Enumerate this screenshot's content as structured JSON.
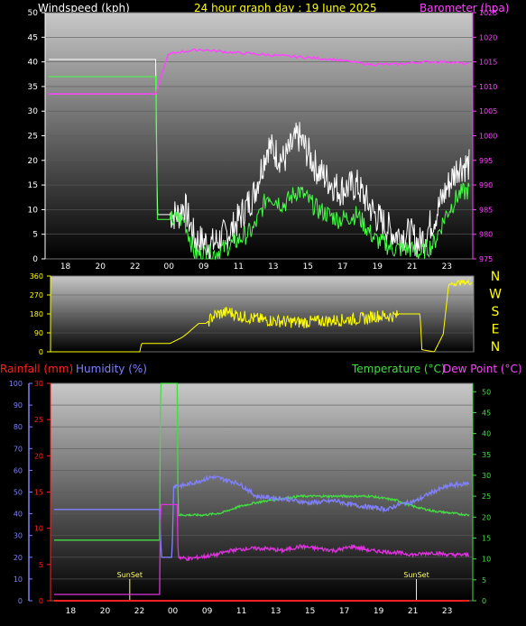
{
  "header": {
    "left_title": "Windspeed (kph)",
    "center_title": "24 hour graph day : 19 June 2025",
    "right_title": "Barometer (hpa)"
  },
  "bottom_header": {
    "rain_label": "Rainfall (mm)",
    "humidity_label": "Humidity (%)",
    "temp_label": "Temperature (°C)",
    "dew_label": "Dew Point (°C)"
  },
  "compass": [
    "N",
    "W",
    "S",
    "E",
    "N"
  ],
  "sunset_label": "SunSet",
  "colors": {
    "windspeed": "#ffffff",
    "gust": "#ffffff",
    "avg_wind": "#44ff44",
    "barometer": "#ff44ff",
    "direction": "#ffff00",
    "rain": "#ff2020",
    "humidity": "#8080ff",
    "temperature": "#44dd44",
    "dewpoint": "#dd33dd",
    "sunset": "#ffff66"
  },
  "chart_data": [
    {
      "type": "line",
      "name": "wind",
      "x_ticks": [
        "18",
        "20",
        "22",
        "00",
        "09",
        "11",
        "13",
        "15",
        "17",
        "19",
        "21",
        "23"
      ],
      "ylim": [
        0,
        50
      ],
      "y_ticks": [
        0,
        5,
        10,
        15,
        20,
        25,
        30,
        35,
        40,
        45,
        50
      ],
      "y2lim": [
        975,
        1025
      ],
      "y2_ticks": [
        975,
        980,
        985,
        990,
        995,
        1000,
        1005,
        1010,
        1015,
        1020,
        1025
      ],
      "series": [
        {
          "key": "gust",
          "x": [
            0,
            6.0,
            6.1,
            6.6,
            7.3,
            7.6,
            8.2,
            9.2,
            10.3,
            11.5,
            12.3,
            13.2,
            14.0,
            15.1,
            16.3,
            17.3,
            18.3,
            19.4,
            20.3,
            20.8,
            21.6,
            22.3,
            23.0,
            23.6
          ],
          "values": [
            40.5,
            40.5,
            9,
            9,
            9,
            11,
            4,
            3,
            6,
            13,
            23,
            20,
            25,
            18,
            14,
            15,
            9,
            5,
            5,
            3,
            8,
            14,
            19,
            19
          ]
        },
        {
          "key": "avg",
          "x": [
            0,
            6.0,
            6.1,
            6.6,
            7.3,
            7.6,
            8.2,
            9.2,
            10.3,
            11.5,
            12.3,
            13.2,
            14.0,
            15.1,
            16.3,
            17.3,
            18.3,
            19.4,
            20.3,
            20.8,
            21.6,
            22.3,
            23.0,
            23.6
          ],
          "values": [
            37,
            37,
            8,
            8,
            8,
            8,
            1,
            1,
            3,
            6,
            13,
            11,
            14,
            10,
            8,
            9,
            4,
            2,
            2,
            1,
            3,
            9,
            13,
            14
          ]
        },
        {
          "key": "baro",
          "x": [
            0,
            6.0,
            6.3,
            6.7,
            7.3,
            8.5,
            10,
            12,
            14,
            16,
            18,
            19.5,
            21,
            22.5,
            23.6
          ],
          "values": [
            1008.5,
            1008.5,
            1012,
            1016.5,
            1017,
            1017.5,
            1017,
            1016.5,
            1016,
            1015.5,
            1014.5,
            1014.5,
            1015,
            1015,
            1014.5
          ]
        }
      ]
    },
    {
      "type": "line",
      "name": "wind_direction",
      "ylim": [
        0,
        360
      ],
      "y_ticks": [
        0,
        90,
        180,
        270,
        360
      ],
      "series": [
        {
          "key": "dir",
          "x": [
            0,
            5.0,
            5.1,
            6.4,
            6.7,
            7.4,
            7.7,
            8.3,
            8.7,
            9.2,
            10.0,
            10.6,
            12.0,
            14.0,
            16.0,
            17.9,
            18.0,
            19.4,
            19.5,
            20.7,
            20.8,
            21.5,
            22.0,
            22.3,
            22.9,
            23.6
          ],
          "values": [
            0,
            0,
            40,
            40,
            40,
            70,
            90,
            135,
            135,
            175,
            190,
            170,
            150,
            140,
            150,
            160,
            170,
            170,
            180,
            180,
            10,
            0,
            85,
            320,
            330,
            330
          ]
        }
      ]
    },
    {
      "type": "line",
      "name": "rain_humidity_temp",
      "x_ticks": [
        "18",
        "20",
        "22",
        "00",
        "09",
        "11",
        "13",
        "15",
        "17",
        "19",
        "21",
        "23"
      ],
      "rain_ylim": [
        0,
        30
      ],
      "rain_ticks": [
        0,
        5,
        10,
        15,
        20,
        25,
        30
      ],
      "humidity_ylim": [
        0,
        100
      ],
      "humidity_ticks": [
        0,
        10,
        20,
        30,
        40,
        50,
        60,
        70,
        80,
        90,
        100
      ],
      "temp_ylim": [
        0,
        52
      ],
      "temp_ticks": [
        0,
        5,
        10,
        15,
        20,
        25,
        30,
        35,
        40,
        45,
        50
      ],
      "series": [
        {
          "key": "rain",
          "x": [
            0,
            23.6
          ],
          "values": [
            0,
            0
          ]
        },
        {
          "key": "humidity",
          "x": [
            0,
            6.0,
            6.1,
            6.7,
            6.8,
            7.4,
            8.2,
            9.0,
            9.6,
            10.5,
            11.5,
            13,
            14.5,
            16,
            17,
            18,
            19,
            19.5,
            20.6,
            21.5,
            22.5,
            23.6
          ],
          "values": [
            42,
            42,
            20,
            20,
            53,
            53,
            55,
            57,
            56,
            54,
            48,
            47,
            45,
            46,
            44,
            43,
            42,
            44,
            46,
            50,
            53,
            54
          ]
        },
        {
          "key": "temperature",
          "x": [
            0,
            6.0,
            6.05,
            7.0,
            7.05,
            8.5,
            9.5,
            10.5,
            11.5,
            13,
            14,
            15,
            16,
            17,
            18,
            19.5,
            20.5,
            21.5,
            22.5,
            23.6
          ],
          "values": [
            14.5,
            14.5,
            52,
            52,
            20.5,
            20.5,
            21,
            22.5,
            23.5,
            24.5,
            25,
            25,
            25,
            25,
            25,
            24,
            22.5,
            21.5,
            21,
            20.5
          ]
        },
        {
          "key": "dewpoint",
          "x": [
            0,
            6.0,
            6.05,
            7.0,
            7.05,
            7.6,
            9.2,
            10,
            11,
            12,
            13,
            14,
            15,
            16,
            17,
            18,
            19.5,
            20.5,
            21.5,
            22.5,
            23.6
          ],
          "values": [
            1.5,
            1.5,
            23,
            23,
            10.5,
            10,
            11,
            12,
            12.5,
            12.5,
            12,
            13,
            12.5,
            12,
            13,
            12,
            11.5,
            11,
            11.5,
            11,
            11
          ]
        }
      ],
      "sunset_x": [
        4.3,
        20.6
      ]
    }
  ]
}
